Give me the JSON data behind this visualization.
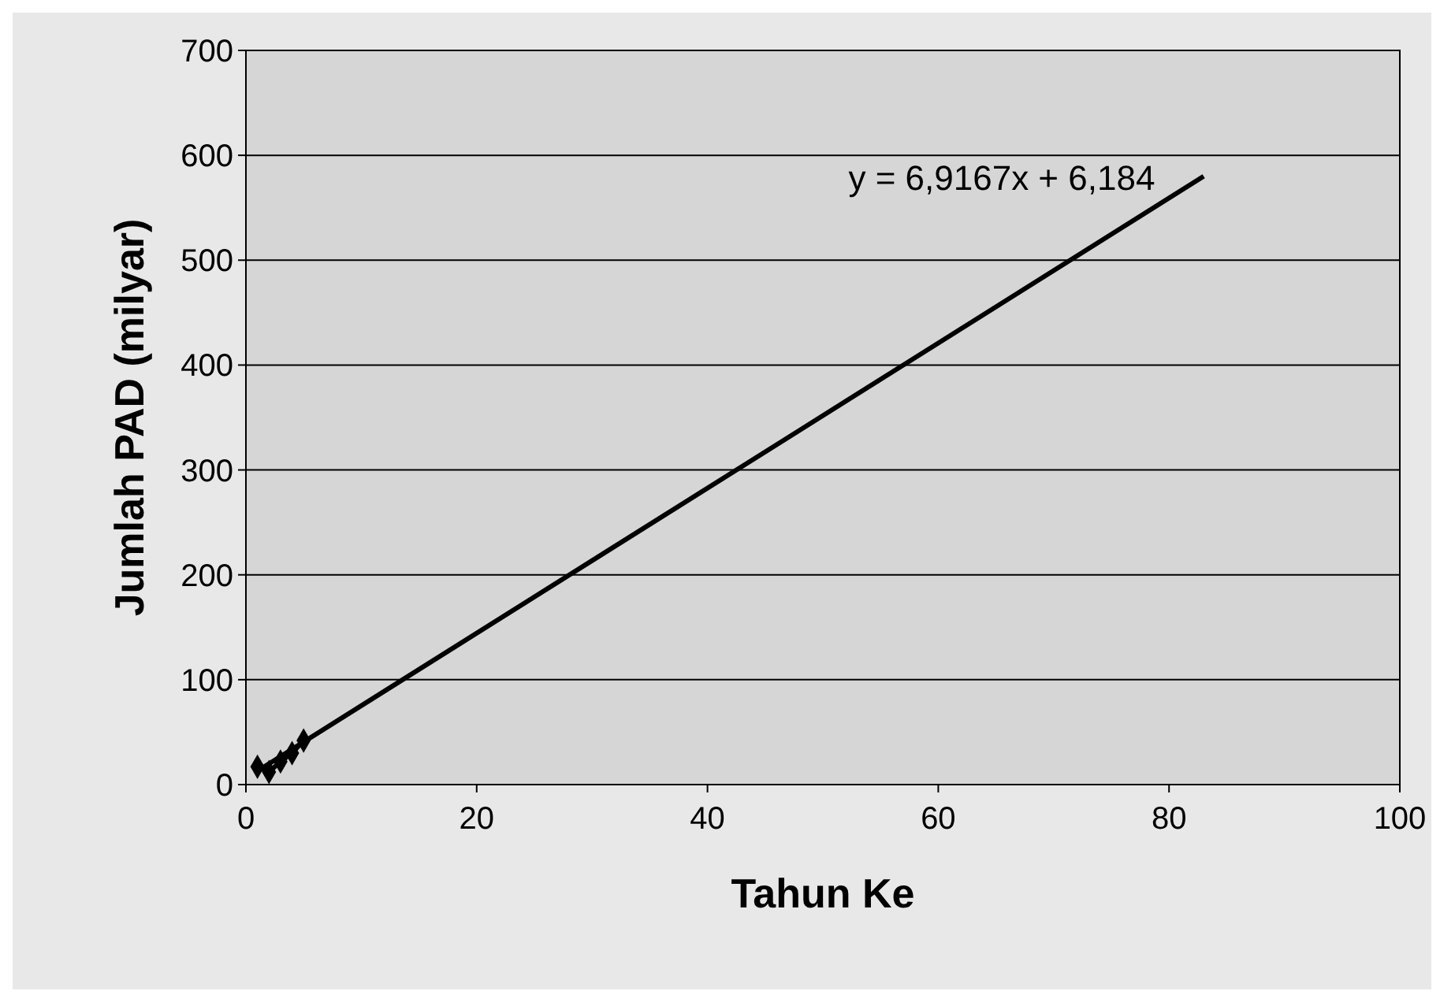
{
  "chart_data": {
    "type": "line",
    "xlabel": "Tahun Ke",
    "ylabel": "Jumlah PAD (milyar)",
    "xlim": [
      0,
      100
    ],
    "xticks": [
      0,
      20,
      40,
      60,
      80,
      100
    ],
    "ylim": [
      0,
      700
    ],
    "yticks": [
      0,
      100,
      200,
      300,
      400,
      500,
      600,
      700
    ],
    "grid": "y",
    "series": [
      {
        "color": "#000000",
        "x": [
          1,
          2,
          3,
          4,
          5
        ],
        "values": [
          17,
          12,
          22,
          30,
          42
        ],
        "marker": "diamond"
      },
      {
        "color": "#000000",
        "x": [
          1,
          83
        ],
        "values": [
          13,
          580
        ],
        "marker": "none"
      }
    ],
    "annotations": [
      "y = 6,9167x + 6,184"
    ]
  }
}
